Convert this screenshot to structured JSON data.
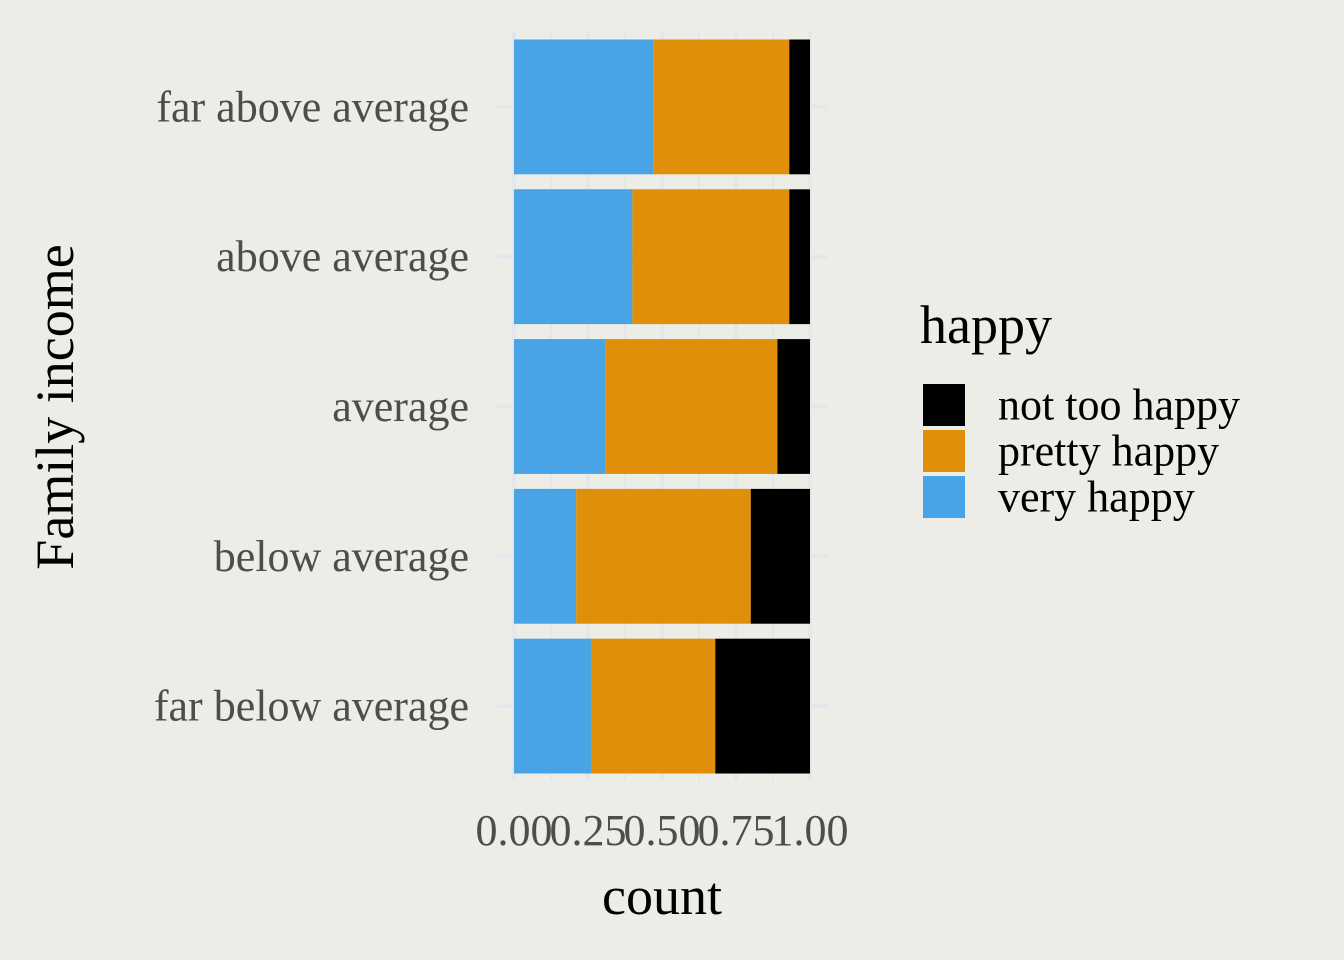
{
  "chart_data": {
    "type": "bar",
    "orientation": "horizontal",
    "stacked": true,
    "position": "fill",
    "categories": [
      "far below average",
      "below average",
      "average",
      "above average",
      "far above average"
    ],
    "series": [
      {
        "name": "very happy",
        "color": "#48a4e4",
        "values": [
          0.26,
          0.21,
          0.31,
          0.4,
          0.47
        ]
      },
      {
        "name": "pretty happy",
        "color": "#df8f0a",
        "values": [
          0.42,
          0.59,
          0.58,
          0.53,
          0.46
        ]
      },
      {
        "name": "not too happy",
        "color": "#000000",
        "values": [
          0.32,
          0.2,
          0.11,
          0.07,
          0.07
        ]
      }
    ],
    "x_ticks": [
      "0.00",
      "0.25",
      "0.50",
      "0.75",
      "1.00"
    ],
    "xlim": [
      0,
      1
    ],
    "xlabel": "count",
    "ylabel": "Family income",
    "legend": {
      "title": "happy",
      "placement": "right",
      "entries": [
        "not too happy",
        "pretty happy",
        "very happy"
      ]
    },
    "grid": true,
    "background": "#ecede6",
    "gridline_color": "#e4e6ea"
  }
}
